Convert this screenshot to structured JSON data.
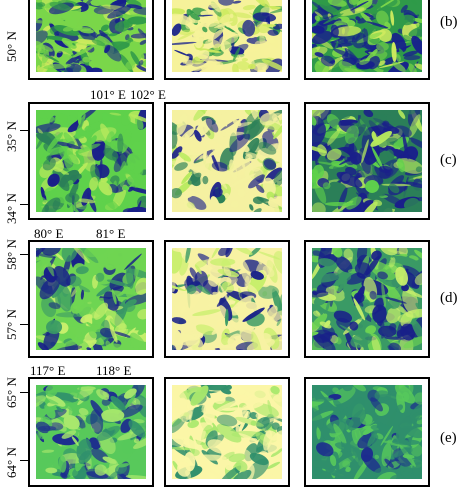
{
  "rows": [
    {
      "id": "b",
      "label": "(b)",
      "lat_labels": [
        "50° N"
      ],
      "lon_labels": [],
      "colors": {
        "dark": "#17208c",
        "mid": "#2f9a49",
        "light": "#7ad64a",
        "bright": "#cdea5e",
        "pale": "#f6f29a"
      }
    },
    {
      "id": "c",
      "label": "(c)",
      "lat_labels": [
        "35° N",
        "34° N"
      ],
      "lon_labels": [
        "101° E",
        "102° E"
      ],
      "colors": {
        "dark": "#1a1f8a",
        "mid": "#2b7f58",
        "light": "#5fd14b",
        "bright": "#b7ea5d",
        "pale": "#f5f1a1"
      }
    },
    {
      "id": "d",
      "label": "(d)",
      "lat_labels": [
        "58° N",
        "57° N"
      ],
      "lon_labels": [
        "80° E",
        "81° E"
      ],
      "colors": {
        "dark": "#182089",
        "mid": "#3a9a65",
        "light": "#6fd552",
        "bright": "#c7ef6b",
        "pale": "#f7f2a3"
      }
    },
    {
      "id": "e",
      "label": "(e)",
      "lat_labels": [
        "65° N",
        "64° N"
      ],
      "lon_labels": [
        "117° E",
        "118° E"
      ],
      "colors": {
        "dark": "#1c2b8f",
        "mid": "#2f8f6c",
        "light": "#58c95b",
        "bright": "#a9e86d",
        "pale": "#fbf6a7"
      }
    }
  ]
}
